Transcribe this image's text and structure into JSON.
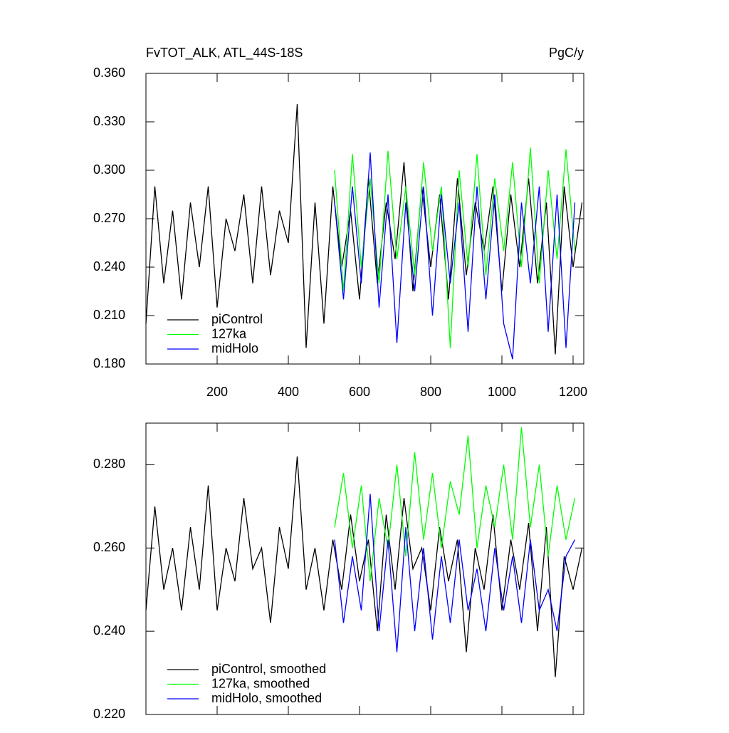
{
  "chart_data": [
    {
      "type": "line",
      "title": "FvTOT_ALK, ATL_44S-18S",
      "units": "PgC/y",
      "xlim": [
        0,
        1230
      ],
      "xticks": [
        200,
        400,
        600,
        800,
        1000,
        1200
      ],
      "xtick_labels": true,
      "ylim": [
        0.18,
        0.36
      ],
      "yticks": [
        {
          "value": 0.18,
          "label": "0.180"
        },
        {
          "value": 0.21,
          "label": "0.210"
        },
        {
          "value": 0.24,
          "label": "0.240"
        },
        {
          "value": 0.27,
          "label": "0.270"
        },
        {
          "value": 0.3,
          "label": "0.300"
        },
        {
          "value": 0.33,
          "label": "0.330"
        },
        {
          "value": 0.36,
          "label": "0.360"
        }
      ],
      "series": [
        {
          "name": "piControl",
          "color": "#000000",
          "x": [
            0,
            25,
            50,
            75,
            100,
            125,
            150,
            175,
            200,
            225,
            250,
            275,
            300,
            325,
            350,
            375,
            400,
            425,
            450,
            475,
            500,
            525,
            550,
            575,
            600,
            625,
            650,
            675,
            700,
            725,
            750,
            775,
            800,
            825,
            850,
            875,
            900,
            925,
            950,
            975,
            1000,
            1025,
            1050,
            1075,
            1100,
            1125,
            1150,
            1175,
            1200,
            1225
          ],
          "values": [
            0.205,
            0.29,
            0.23,
            0.275,
            0.22,
            0.28,
            0.24,
            0.29,
            0.215,
            0.27,
            0.25,
            0.285,
            0.23,
            0.29,
            0.235,
            0.275,
            0.255,
            0.341,
            0.19,
            0.28,
            0.205,
            0.29,
            0.24,
            0.275,
            0.22,
            0.295,
            0.23,
            0.28,
            0.245,
            0.305,
            0.225,
            0.29,
            0.24,
            0.285,
            0.22,
            0.295,
            0.235,
            0.28,
            0.25,
            0.29,
            0.225,
            0.285,
            0.24,
            0.295,
            0.23,
            0.28,
            0.186,
            0.29,
            0.24,
            0.28
          ]
        },
        {
          "name": "127ka",
          "color": "#00ff00",
          "x": [
            530,
            555,
            580,
            605,
            630,
            655,
            680,
            705,
            730,
            755,
            780,
            805,
            830,
            855,
            880,
            905,
            930,
            955,
            980,
            1005,
            1030,
            1055,
            1080,
            1105,
            1130,
            1155,
            1180,
            1205
          ],
          "values": [
            0.3,
            0.225,
            0.31,
            0.24,
            0.295,
            0.23,
            0.312,
            0.245,
            0.29,
            0.235,
            0.305,
            0.25,
            0.29,
            0.19,
            0.3,
            0.24,
            0.31,
            0.235,
            0.295,
            0.25,
            0.305,
            0.24,
            0.314,
            0.23,
            0.3,
            0.245,
            0.313,
            0.25
          ]
        },
        {
          "name": "midHolo",
          "color": "#0000ff",
          "x": [
            530,
            555,
            580,
            605,
            630,
            655,
            680,
            705,
            730,
            755,
            780,
            805,
            830,
            855,
            880,
            905,
            930,
            955,
            980,
            1005,
            1030,
            1055,
            1080,
            1105,
            1130,
            1155,
            1180,
            1205
          ],
          "values": [
            0.28,
            0.22,
            0.29,
            0.23,
            0.311,
            0.215,
            0.285,
            0.193,
            0.28,
            0.225,
            0.29,
            0.21,
            0.285,
            0.23,
            0.28,
            0.2,
            0.29,
            0.22,
            0.285,
            0.205,
            0.183,
            0.28,
            0.23,
            0.29,
            0.2,
            0.285,
            0.19,
            0.28
          ]
        }
      ]
    },
    {
      "type": "line",
      "xlim": [
        0,
        1230
      ],
      "xticks": [
        200,
        400,
        600,
        800,
        1000,
        1200
      ],
      "xtick_labels": false,
      "ylim": [
        0.22,
        0.29
      ],
      "yticks": [
        {
          "value": 0.22,
          "label": "0.220"
        },
        {
          "value": 0.24,
          "label": "0.240"
        },
        {
          "value": 0.26,
          "label": "0.260"
        },
        {
          "value": 0.28,
          "label": "0.280"
        }
      ],
      "series": [
        {
          "name": "piControl, smoothed",
          "color": "#000000",
          "x": [
            0,
            25,
            50,
            75,
            100,
            125,
            150,
            175,
            200,
            225,
            250,
            275,
            300,
            325,
            350,
            375,
            400,
            425,
            450,
            475,
            500,
            525,
            550,
            575,
            600,
            625,
            650,
            675,
            700,
            725,
            750,
            775,
            800,
            825,
            850,
            875,
            900,
            925,
            950,
            975,
            1000,
            1025,
            1050,
            1075,
            1100,
            1125,
            1150,
            1175,
            1200,
            1225
          ],
          "values": [
            0.245,
            0.27,
            0.25,
            0.26,
            0.245,
            0.265,
            0.25,
            0.275,
            0.245,
            0.26,
            0.252,
            0.272,
            0.255,
            0.26,
            0.242,
            0.265,
            0.255,
            0.282,
            0.25,
            0.26,
            0.245,
            0.262,
            0.25,
            0.268,
            0.252,
            0.262,
            0.24,
            0.268,
            0.25,
            0.272,
            0.255,
            0.26,
            0.245,
            0.265,
            0.252,
            0.262,
            0.235,
            0.26,
            0.25,
            0.268,
            0.245,
            0.262,
            0.25,
            0.266,
            0.24,
            0.265,
            0.229,
            0.258,
            0.25,
            0.26
          ]
        },
        {
          "name": "127ka, smoothed",
          "color": "#00ff00",
          "x": [
            530,
            555,
            580,
            605,
            630,
            655,
            680,
            705,
            730,
            755,
            780,
            805,
            830,
            855,
            880,
            905,
            930,
            955,
            980,
            1005,
            1030,
            1055,
            1080,
            1105,
            1130,
            1155,
            1180,
            1205
          ],
          "values": [
            0.265,
            0.278,
            0.26,
            0.275,
            0.252,
            0.272,
            0.26,
            0.28,
            0.258,
            0.283,
            0.262,
            0.278,
            0.26,
            0.276,
            0.268,
            0.287,
            0.26,
            0.275,
            0.265,
            0.28,
            0.262,
            0.289,
            0.265,
            0.28,
            0.258,
            0.275,
            0.262,
            0.272
          ]
        },
        {
          "name": "midHolo, smoothed",
          "color": "#0000ff",
          "x": [
            530,
            555,
            580,
            605,
            630,
            655,
            680,
            705,
            730,
            755,
            780,
            805,
            830,
            855,
            880,
            905,
            930,
            955,
            980,
            1005,
            1030,
            1055,
            1080,
            1105,
            1130,
            1155,
            1180,
            1205
          ],
          "values": [
            0.262,
            0.242,
            0.258,
            0.245,
            0.273,
            0.24,
            0.262,
            0.235,
            0.265,
            0.24,
            0.26,
            0.238,
            0.258,
            0.242,
            0.262,
            0.245,
            0.255,
            0.24,
            0.26,
            0.245,
            0.258,
            0.242,
            0.262,
            0.245,
            0.25,
            0.24,
            0.258,
            0.262
          ]
        }
      ]
    }
  ]
}
